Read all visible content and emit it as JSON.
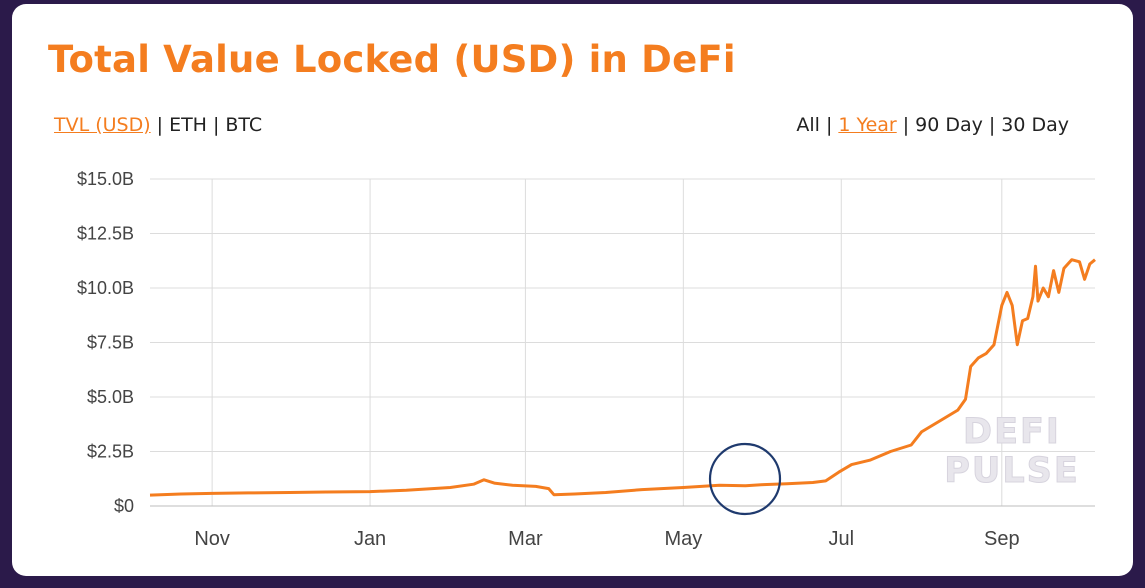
{
  "header": {
    "title": "Total Value Locked (USD) in DeFi"
  },
  "metric_toggle": {
    "options": [
      "TVL (USD)",
      "ETH",
      "BTC"
    ],
    "active": "TVL (USD)"
  },
  "range_toggle": {
    "options": [
      "All",
      "1 Year",
      "90 Day",
      "30 Day"
    ],
    "active": "1 Year"
  },
  "watermark": {
    "line1": "DEFI",
    "line2": "PULSE"
  },
  "colors": {
    "accent": "#f47d1f",
    "annotation": "#1f3a6e",
    "grid": "#dcdcdc"
  },
  "chart_data": {
    "type": "line",
    "title": "",
    "xlabel": "",
    "ylabel": "",
    "x_ticks": [
      "Nov",
      "Jan",
      "Mar",
      "May",
      "Jul",
      "Sep"
    ],
    "y_ticks": [
      "$0",
      "$2.5B",
      "$5.0B",
      "$7.5B",
      "$10.0B",
      "$12.5B",
      "$15.0B"
    ],
    "ylim": [
      0,
      15
    ],
    "y_unit": "billion USD",
    "grid": true,
    "x_range": [
      "2019-10-08",
      "2020-10-07"
    ],
    "series": [
      {
        "values": [
          [
            "2019-10-08",
            0.5
          ],
          [
            "2019-10-20",
            0.55
          ],
          [
            "2019-11-01",
            0.58
          ],
          [
            "2019-11-15",
            0.6
          ],
          [
            "2019-12-01",
            0.62
          ],
          [
            "2019-12-15",
            0.64
          ],
          [
            "2020-01-01",
            0.66
          ],
          [
            "2020-01-15",
            0.72
          ],
          [
            "2020-02-01",
            0.85
          ],
          [
            "2020-02-10",
            1.0
          ],
          [
            "2020-02-14",
            1.2
          ],
          [
            "2020-02-18",
            1.05
          ],
          [
            "2020-02-25",
            0.95
          ],
          [
            "2020-03-05",
            0.9
          ],
          [
            "2020-03-10",
            0.8
          ],
          [
            "2020-03-12",
            0.52
          ],
          [
            "2020-03-20",
            0.55
          ],
          [
            "2020-04-01",
            0.62
          ],
          [
            "2020-04-15",
            0.75
          ],
          [
            "2020-05-01",
            0.85
          ],
          [
            "2020-05-15",
            0.95
          ],
          [
            "2020-05-25",
            0.93
          ],
          [
            "2020-06-01",
            0.98
          ],
          [
            "2020-06-10",
            1.02
          ],
          [
            "2020-06-20",
            1.08
          ],
          [
            "2020-06-25",
            1.15
          ],
          [
            "2020-06-30",
            1.55
          ],
          [
            "2020-07-05",
            1.9
          ],
          [
            "2020-07-12",
            2.1
          ],
          [
            "2020-07-20",
            2.5
          ],
          [
            "2020-07-28",
            2.8
          ],
          [
            "2020-08-01",
            3.4
          ],
          [
            "2020-08-08",
            3.9
          ],
          [
            "2020-08-15",
            4.4
          ],
          [
            "2020-08-18",
            4.9
          ],
          [
            "2020-08-20",
            6.4
          ],
          [
            "2020-08-23",
            6.8
          ],
          [
            "2020-08-26",
            7.0
          ],
          [
            "2020-08-29",
            7.4
          ],
          [
            "2020-09-01",
            9.2
          ],
          [
            "2020-09-03",
            9.8
          ],
          [
            "2020-09-05",
            9.2
          ],
          [
            "2020-09-07",
            7.4
          ],
          [
            "2020-09-09",
            8.5
          ],
          [
            "2020-09-11",
            8.6
          ],
          [
            "2020-09-13",
            9.6
          ],
          [
            "2020-09-14",
            11.0
          ],
          [
            "2020-09-15",
            9.4
          ],
          [
            "2020-09-17",
            10.0
          ],
          [
            "2020-09-19",
            9.6
          ],
          [
            "2020-09-21",
            10.8
          ],
          [
            "2020-09-23",
            9.8
          ],
          [
            "2020-09-25",
            10.9
          ],
          [
            "2020-09-28",
            11.3
          ],
          [
            "2020-10-01",
            11.2
          ],
          [
            "2020-10-03",
            10.4
          ],
          [
            "2020-10-05",
            11.1
          ],
          [
            "2020-10-07",
            11.3
          ]
        ]
      }
    ]
  }
}
